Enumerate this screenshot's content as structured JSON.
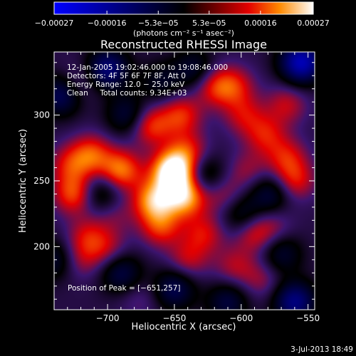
{
  "chart_data": {
    "type": "heatmap",
    "title": "Reconstructed RHESSI Image",
    "xlabel": "Heliocentric X (arcsec)",
    "ylabel": "Heliocentric Y (arcsec)",
    "xlim": [
      -740,
      -545
    ],
    "ylim": [
      152,
      348
    ],
    "xticks": [
      -700,
      -650,
      -600,
      -550
    ],
    "xtick_labels": [
      "−700",
      "−650",
      "−600",
      "−550"
    ],
    "yticks": [
      200,
      250,
      300
    ],
    "ytick_labels": [
      "200",
      "250",
      "300"
    ],
    "colorbar": {
      "range": [
        -0.00027,
        0.00027
      ],
      "ticks": [
        -0.00027,
        -0.00016,
        -5.3e-05,
        5.3e-05,
        0.00016,
        0.00027
      ],
      "tick_labels": [
        "−0.00027",
        "−0.00016",
        "−5.3e−05",
        "5.3e−05",
        "0.00016",
        "0.00027"
      ],
      "units": "(photons cm⁻² s⁻¹ asec⁻²)",
      "colormap": [
        "#0000ff",
        "#000000",
        "#e40000",
        "#ff8a00",
        "#ffffff"
      ]
    },
    "annotations": [
      "12-Jan-2005 19:02:46.000 to 19:08:46.000",
      "Detectors: 4F 5F 6F 7F 8F, Att 0",
      "Energy Range: 12.0 − 25.0 keV",
      "Clean     Total counts: 9.34E+03"
    ],
    "peak_label": "Position of Peak = [−651,257]",
    "peak": {
      "x": -651,
      "y": 257
    },
    "sources": [
      {
        "x": -651,
        "y": 257,
        "value": 0.00027
      },
      {
        "x": -642,
        "y": 238,
        "value": 0.00019
      },
      {
        "x": -665,
        "y": 235,
        "value": 0.00018
      },
      {
        "x": -660,
        "y": 215,
        "value": 0.00012
      },
      {
        "x": -690,
        "y": 258,
        "value": 0.00016
      },
      {
        "x": -712,
        "y": 270,
        "value": 0.00013
      },
      {
        "x": -725,
        "y": 240,
        "value": 0.00014
      },
      {
        "x": -728,
        "y": 262,
        "value": 0.0001
      },
      {
        "x": -715,
        "y": 208,
        "value": 9e-05
      },
      {
        "x": -700,
        "y": 198,
        "value": 8e-05
      },
      {
        "x": -720,
        "y": 190,
        "value": 7e-05
      },
      {
        "x": -668,
        "y": 292,
        "value": 0.00013
      },
      {
        "x": -645,
        "y": 300,
        "value": 0.00012
      },
      {
        "x": -640,
        "y": 272,
        "value": 0.00011
      },
      {
        "x": -620,
        "y": 322,
        "value": 0.00011
      },
      {
        "x": -605,
        "y": 322,
        "value": 0.0001
      },
      {
        "x": -598,
        "y": 300,
        "value": 9e-05
      },
      {
        "x": -582,
        "y": 285,
        "value": 0.0001
      },
      {
        "x": -566,
        "y": 308,
        "value": 9e-05
      },
      {
        "x": -566,
        "y": 268,
        "value": 0.0001
      },
      {
        "x": -560,
        "y": 250,
        "value": 0.00011
      },
      {
        "x": -595,
        "y": 258,
        "value": 7e-05
      },
      {
        "x": -612,
        "y": 238,
        "value": 8e-05
      },
      {
        "x": -628,
        "y": 210,
        "value": 0.0001
      },
      {
        "x": -640,
        "y": 190,
        "value": 9e-05
      },
      {
        "x": -605,
        "y": 185,
        "value": 8e-05
      },
      {
        "x": -590,
        "y": 210,
        "value": 0.0001
      },
      {
        "x": -585,
        "y": 175,
        "value": 7e-05
      },
      {
        "x": -575,
        "y": 215,
        "value": 6e-05
      },
      {
        "x": -722,
        "y": 325,
        "value": 6e-05
      },
      {
        "x": -695,
        "y": 225,
        "value": 6e-05
      },
      {
        "x": -676,
        "y": 160,
        "value": 5e-05
      },
      {
        "x": -700,
        "y": 335,
        "value": -0.00015
      },
      {
        "x": -735,
        "y": 315,
        "value": -0.00012
      },
      {
        "x": -555,
        "y": 340,
        "value": -0.00022
      },
      {
        "x": -560,
        "y": 158,
        "value": -0.00016
      },
      {
        "x": -690,
        "y": 180,
        "value": -0.0001
      },
      {
        "x": -650,
        "y": 168,
        "value": -0.00011
      },
      {
        "x": -610,
        "y": 158,
        "value": -9e-05
      },
      {
        "x": -685,
        "y": 300,
        "value": -9e-05
      },
      {
        "x": -628,
        "y": 255,
        "value": -8e-05
      },
      {
        "x": -600,
        "y": 225,
        "value": -8e-05
      },
      {
        "x": -578,
        "y": 240,
        "value": -9e-05
      },
      {
        "x": -705,
        "y": 240,
        "value": -8e-05
      },
      {
        "x": -740,
        "y": 190,
        "value": -8e-05
      },
      {
        "x": -635,
        "y": 335,
        "value": -8e-05
      },
      {
        "x": -570,
        "y": 195,
        "value": -8e-05
      },
      {
        "x": -660,
        "y": 325,
        "value": -6e-05
      }
    ]
  },
  "footer": {
    "date_stamp": "3-Jul-2013 18:49"
  }
}
